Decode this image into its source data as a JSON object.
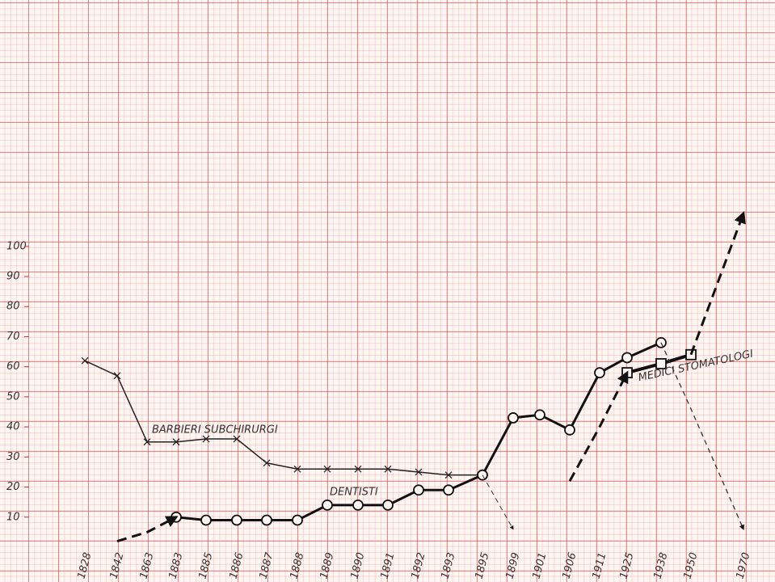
{
  "chart_data": {
    "type": "line",
    "categories": [
      "1828",
      "1842",
      "1863",
      "1883",
      "1885",
      "1886",
      "1887",
      "1888",
      "1889",
      "1890",
      "1891",
      "1892",
      "1893",
      "1895",
      "1899",
      "1901",
      "1906",
      "1911",
      "1925",
      "1938",
      "1950",
      "1970"
    ],
    "series": [
      {
        "name": "BARBIERI SUBCHIRURGI",
        "color": "#222222",
        "marker": "x",
        "dashed": false,
        "width": 1.5,
        "values": [
          62,
          57,
          35,
          35,
          36,
          36,
          28,
          26,
          26,
          26,
          26,
          25,
          24,
          24,
          null,
          null,
          null,
          null,
          null,
          null,
          null,
          null
        ]
      },
      {
        "name": "DENTISTI",
        "color": "#111111",
        "marker": "circle",
        "dashed": false,
        "width": 3,
        "values": [
          null,
          null,
          null,
          10,
          9,
          9,
          9,
          9,
          14,
          14,
          14,
          19,
          19,
          24,
          43,
          44,
          39,
          58,
          63,
          68,
          null,
          null
        ]
      },
      {
        "name": "MEDICI STOMATOLOGI",
        "color": "#111111",
        "marker": "square",
        "dashed": false,
        "width": 4,
        "values": [
          null,
          null,
          null,
          null,
          null,
          null,
          null,
          null,
          null,
          null,
          null,
          null,
          null,
          null,
          null,
          null,
          null,
          null,
          58,
          61,
          64,
          null
        ]
      },
      {
        "color": "#111111",
        "marker": "none",
        "dashed": true,
        "width": 3,
        "values": [
          null,
          2,
          5,
          10,
          null,
          null,
          null,
          null,
          null,
          null,
          null,
          null,
          null,
          null,
          null,
          null,
          null,
          null,
          null,
          null,
          null,
          null
        ]
      },
      {
        "color": "#333333",
        "marker": "none",
        "dashed": true,
        "width": 1,
        "values": [
          null,
          null,
          null,
          null,
          null,
          null,
          null,
          null,
          null,
          null,
          null,
          null,
          null,
          24,
          6,
          null,
          null,
          null,
          null,
          null,
          null,
          null
        ]
      },
      {
        "color": "#111111",
        "marker": "none",
        "dashed": true,
        "width": 3,
        "values": [
          null,
          null,
          null,
          null,
          null,
          null,
          null,
          null,
          null,
          null,
          null,
          null,
          null,
          null,
          null,
          null,
          22,
          40,
          58,
          null,
          null,
          null
        ]
      },
      {
        "color": "#111111",
        "marker": "none",
        "dashed": true,
        "width": 3,
        "values": [
          null,
          null,
          null,
          null,
          null,
          null,
          null,
          null,
          null,
          null,
          null,
          null,
          null,
          null,
          null,
          null,
          null,
          null,
          null,
          null,
          64,
          111
        ]
      },
      {
        "color": "#333333",
        "marker": "none",
        "dashed": true,
        "width": 1.3,
        "values": [
          null,
          null,
          null,
          null,
          null,
          null,
          null,
          null,
          null,
          null,
          null,
          null,
          null,
          null,
          null,
          null,
          null,
          null,
          null,
          68,
          46,
          6
        ]
      }
    ],
    "ylim": [
      0,
      180
    ],
    "yticks": [
      10,
      20,
      30,
      40,
      50,
      60,
      70,
      80,
      90,
      100
    ]
  }
}
